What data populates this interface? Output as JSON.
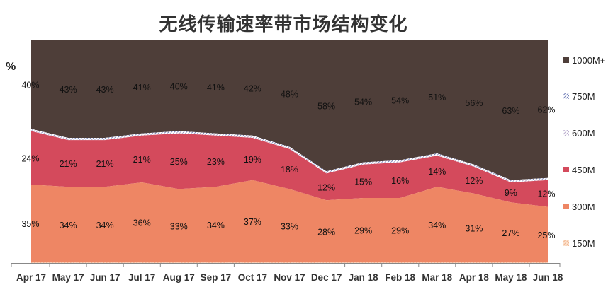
{
  "chart_data": {
    "type": "area",
    "stacked": true,
    "title": "无线传输速率带市场结构变化",
    "ylabel": "%",
    "ylim": [
      0,
      100
    ],
    "categories": [
      "Apr 17",
      "May 17",
      "Jun 17",
      "Jul 17",
      "Aug 17",
      "Sep 17",
      "Oct 17",
      "Nov 17",
      "Dec 17",
      "Jan 18",
      "Feb 18",
      "Mar 18",
      "Apr 18",
      "May 18",
      "Jun 18"
    ],
    "legend_position": "right",
    "series": [
      {
        "name": "150M",
        "color": "#f6c49e",
        "pattern": "hatch",
        "values": [
          0.2,
          0.2,
          0.2,
          0.2,
          0.2,
          0.2,
          0.2,
          0.2,
          0.2,
          0.2,
          0.2,
          0.2,
          0.2,
          0.2,
          0.2
        ]
      },
      {
        "name": "300M",
        "color": "#ee8664",
        "values": [
          35,
          34,
          34,
          36,
          33,
          34,
          37,
          33,
          28,
          29,
          29,
          34,
          31,
          27,
          25
        ]
      },
      {
        "name": "450M",
        "color": "#d44a5c",
        "values": [
          24,
          21,
          21,
          21,
          25,
          23,
          19,
          18,
          12,
          15,
          16,
          14,
          12,
          9,
          12
        ]
      },
      {
        "name": "600M",
        "color": "#b8a7c9",
        "pattern": "hatch",
        "values": [
          0.5,
          0.5,
          0.5,
          0.5,
          0.5,
          0.5,
          0.5,
          0.5,
          0.5,
          0.5,
          0.5,
          0.5,
          0.5,
          0.5,
          0.5
        ]
      },
      {
        "name": "750M",
        "color": "#3d4f9e",
        "pattern": "hatch",
        "values": [
          0.5,
          0.5,
          0.5,
          0.5,
          0.5,
          0.5,
          0.5,
          0.5,
          0.5,
          0.5,
          0.5,
          0.5,
          0.5,
          0.5,
          0.5
        ]
      },
      {
        "name": "1000M+",
        "color": "#4e3e39",
        "values": [
          40,
          43,
          43,
          41,
          40,
          41,
          42,
          48,
          58,
          54,
          54,
          51,
          56,
          63,
          62
        ]
      }
    ],
    "data_labels": {
      "300M": [
        "35%",
        "34%",
        "34%",
        "36%",
        "33%",
        "34%",
        "37%",
        "33%",
        "28%",
        "29%",
        "29%",
        "34%",
        "31%",
        "27%",
        "25%"
      ],
      "450M": [
        "24%",
        "21%",
        "21%",
        "21%",
        "25%",
        "23%",
        "19%",
        "18%",
        "12%",
        "15%",
        "16%",
        "14%",
        "12%",
        "9%",
        "12%"
      ],
      "1000M+": [
        "40%",
        "43%",
        "43%",
        "41%",
        "40%",
        "41%",
        "42%",
        "48%",
        "58%",
        "54%",
        "54%",
        "51%",
        "56%",
        "63%",
        "62%"
      ]
    },
    "legend_order": [
      "1000M+",
      "750M",
      "600M",
      "450M",
      "300M",
      "150M"
    ]
  }
}
